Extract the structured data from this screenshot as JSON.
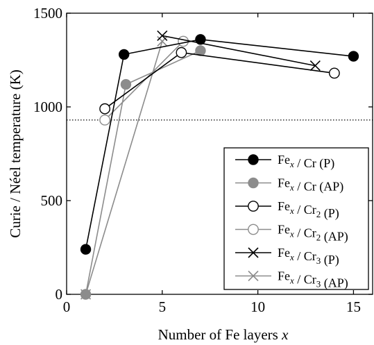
{
  "chart_data": {
    "type": "line",
    "xlabel": "Number of Fe layers",
    "xlabel_var": "x",
    "ylabel": "Curie / Néel temperature (K)",
    "xlim": [
      0,
      16
    ],
    "ylim": [
      0,
      1500
    ],
    "xticks": [
      0,
      5,
      10,
      15
    ],
    "yticks": [
      0,
      500,
      1000,
      1500
    ],
    "grid": false,
    "legend_position": "right",
    "reference_line": {
      "y": 930,
      "style": "dotted"
    },
    "series": [
      {
        "name": "Fe_x / Cr (P)",
        "base": "Fe",
        "sub1": "x",
        "mid": " / Cr",
        "sub2": "",
        "suffix": " (P)",
        "marker": "filled-circle",
        "color": "#000000",
        "x": [
          1,
          3,
          7,
          15
        ],
        "y": [
          240,
          1280,
          1360,
          1270
        ]
      },
      {
        "name": "Fe_x / Cr (AP)",
        "base": "Fe",
        "sub1": "x",
        "mid": " / Cr",
        "sub2": "",
        "suffix": " (AP)",
        "marker": "filled-circle",
        "color": "#8c8c8c",
        "x": [
          1,
          3.1,
          7
        ],
        "y": [
          0,
          1120,
          1300
        ]
      },
      {
        "name": "Fe_x / Cr_2 (P)",
        "base": "Fe",
        "sub1": "x",
        "mid": " / Cr",
        "sub2": "2",
        "suffix": " (P)",
        "marker": "open-circle",
        "color": "#000000",
        "x": [
          2,
          6,
          14
        ],
        "y": [
          990,
          1290,
          1180
        ]
      },
      {
        "name": "Fe_x / Cr_2 (AP)",
        "base": "Fe",
        "sub1": "x",
        "mid": " / Cr",
        "sub2": "2",
        "suffix": " (AP)",
        "marker": "open-circle",
        "color": "#8c8c8c",
        "x": [
          2,
          6.1
        ],
        "y": [
          930,
          1350
        ]
      },
      {
        "name": "Fe_x / Cr_3 (P)",
        "base": "Fe",
        "sub1": "x",
        "mid": " / Cr",
        "sub2": "3",
        "suffix": " (P)",
        "marker": "cross",
        "color": "#000000",
        "x": [
          5,
          13
        ],
        "y": [
          1380,
          1220
        ]
      },
      {
        "name": "Fe_x / Cr_3 (AP)",
        "base": "Fe",
        "sub1": "x",
        "mid": " / Cr",
        "sub2": "3",
        "suffix": " (AP)",
        "marker": "cross",
        "color": "#8c8c8c",
        "x": [
          1,
          5
        ],
        "y": [
          0,
          1350
        ]
      }
    ]
  }
}
